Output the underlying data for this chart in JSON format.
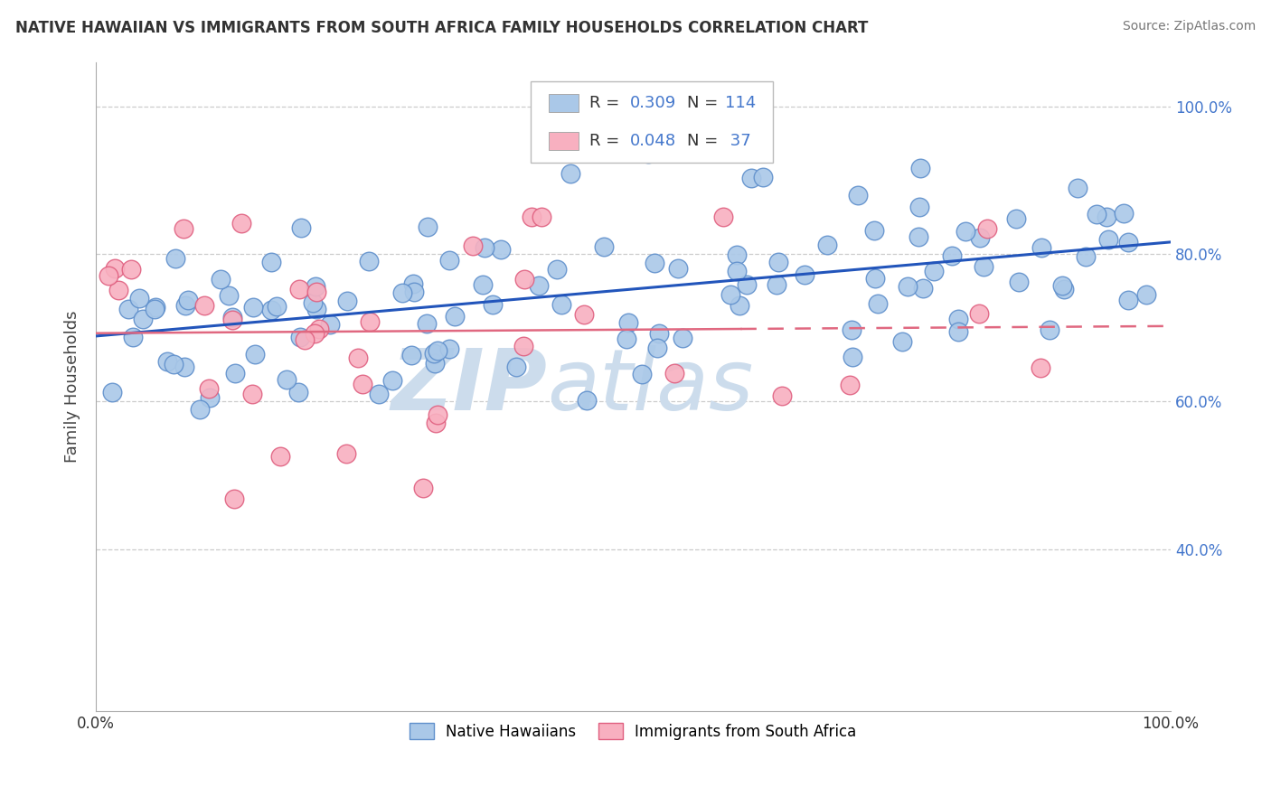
{
  "title": "NATIVE HAWAIIAN VS IMMIGRANTS FROM SOUTH AFRICA FAMILY HOUSEHOLDS CORRELATION CHART",
  "source": "Source: ZipAtlas.com",
  "ylabel": "Family Households",
  "blue_R": 0.309,
  "blue_N": 114,
  "pink_R": 0.048,
  "pink_N": 37,
  "blue_dot_color": "#aac8e8",
  "blue_dot_edge": "#6090cc",
  "pink_dot_color": "#f8b0c0",
  "pink_dot_edge": "#e06080",
  "blue_line_color": "#2255bb",
  "pink_line_color": "#e06880",
  "watermark_zip": "ZIP",
  "watermark_atlas": "atlas",
  "watermark_color": "#ccdcec",
  "background_color": "#ffffff",
  "ytick_color": "#4477cc",
  "ylim_min": 0.18,
  "ylim_max": 1.06,
  "xlim_min": 0.0,
  "xlim_max": 1.0,
  "blue_seed": 42,
  "pink_seed": 99
}
